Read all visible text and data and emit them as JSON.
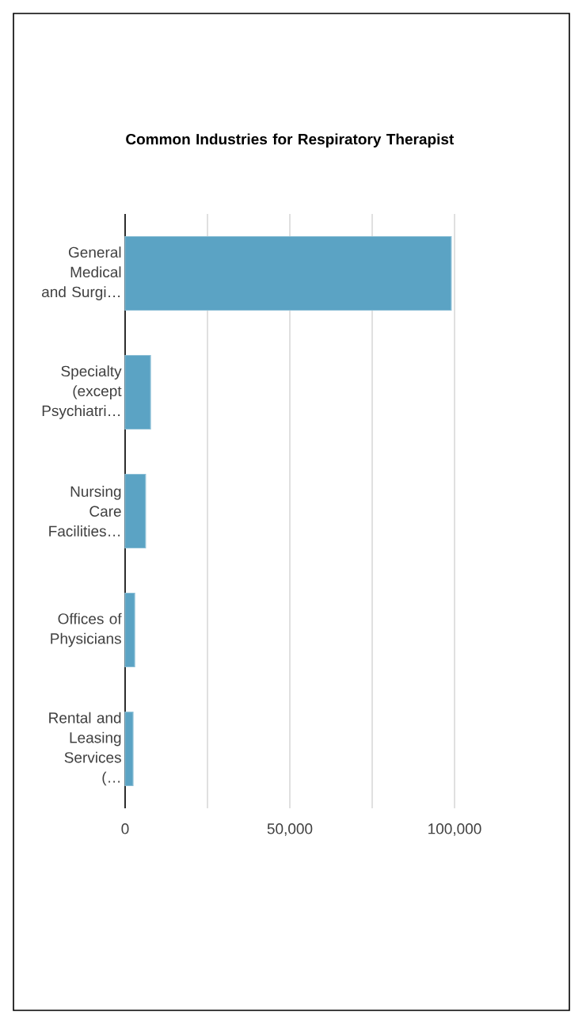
{
  "chart_data": {
    "type": "bar",
    "orientation": "horizontal",
    "title": "Common Industries for Respiratory Therapist",
    "categories": [
      "General Medical and Surgi…",
      "Specialty (except Psychiatri…",
      "Nursing Care Facilities…",
      "Offices of Physicians",
      "Rental and Leasing Services (…"
    ],
    "values": [
      99000,
      7700,
      6200,
      2900,
      2400
    ],
    "color": "#5ba3c4",
    "xlim": [
      0,
      100000
    ],
    "xticks": [
      0,
      {
        "value": 25000,
        "label": null
      },
      {
        "value": 50000,
        "label": "50,000"
      },
      {
        "value": 75000,
        "label": null
      },
      {
        "value": 100000,
        "label": "100,000"
      }
    ],
    "grid": "x"
  }
}
